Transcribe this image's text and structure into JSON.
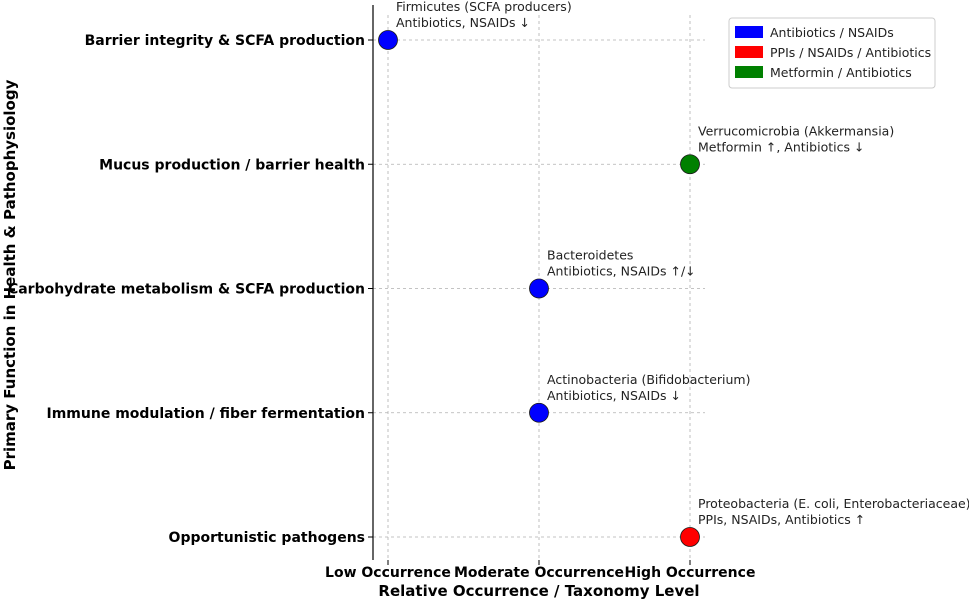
{
  "chart_data": {
    "type": "scatter",
    "title": "",
    "xlabel": "Relative Occurrence / Taxonomy Level",
    "ylabel": "Primary Function in Health & Pathophysiology",
    "x_categories": [
      "Low Occurrence",
      "Moderate Occurrence",
      "High Occurrence"
    ],
    "y_categories": [
      "Opportunistic pathogens",
      "Immune modulation / fiber fermentation",
      "Carbohydrate metabolism & SCFA production",
      "Mucus production / barrier health",
      "Barrier integrity & SCFA production"
    ],
    "grid": true,
    "legend_position": "top-right",
    "legend": [
      {
        "label": "Antibiotics / NSAIDs",
        "color": "#0000ff"
      },
      {
        "label": "PPIs / NSAIDs / Antibiotics",
        "color": "#ff0000"
      },
      {
        "label": "Metformin / Antibiotics",
        "color": "#008000"
      }
    ],
    "points": [
      {
        "x": "Low Occurrence",
        "y": "Barrier integrity & SCFA production",
        "group": "Antibiotics / NSAIDs",
        "color": "#0000ff",
        "label_line1": "Firmicutes (SCFA producers)",
        "label_line2": "Antibiotics, NSAIDs ↓"
      },
      {
        "x": "High Occurrence",
        "y": "Mucus production / barrier health",
        "group": "Metformin / Antibiotics",
        "color": "#008000",
        "label_line1": "Verrucomicrobia (Akkermansia)",
        "label_line2": "Metformin ↑, Antibiotics ↓"
      },
      {
        "x": "Moderate Occurrence",
        "y": "Carbohydrate metabolism & SCFA production",
        "group": "Antibiotics / NSAIDs",
        "color": "#0000ff",
        "label_line1": "Bacteroidetes",
        "label_line2": "Antibiotics, NSAIDs ↑/↓"
      },
      {
        "x": "Moderate Occurrence",
        "y": "Immune modulation / fiber fermentation",
        "group": "Antibiotics / NSAIDs",
        "color": "#0000ff",
        "label_line1": "Actinobacteria (Bifidobacterium)",
        "label_line2": "Antibiotics, NSAIDs ↓"
      },
      {
        "x": "High Occurrence",
        "y": "Opportunistic pathogens",
        "group": "PPIs / NSAIDs / Antibiotics",
        "color": "#ff0000",
        "label_line1": "Proteobacteria (E. coli, Enterobacteriaceae)",
        "label_line2": "PPIs, NSAIDs, Antibiotics ↑"
      }
    ]
  }
}
